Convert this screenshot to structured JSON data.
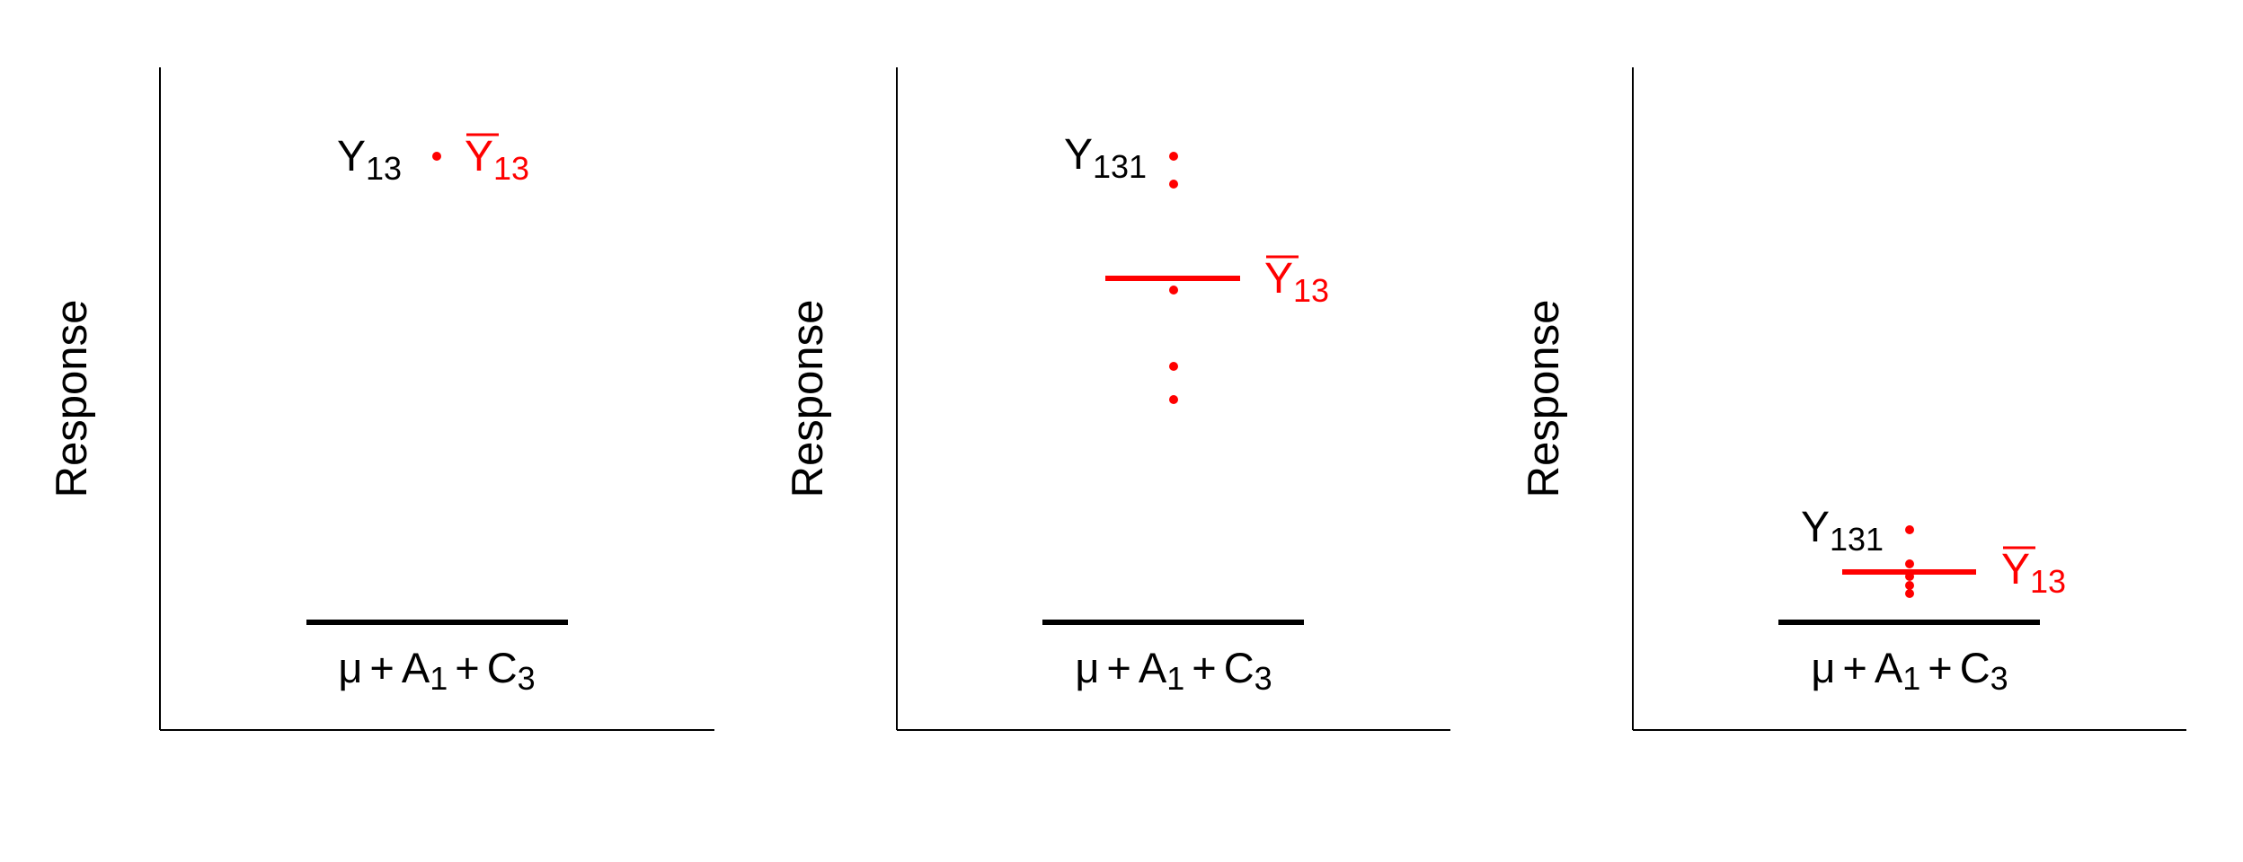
{
  "colors": {
    "axis": "#000000",
    "text": "#000000",
    "highlight": "#ff0000"
  },
  "panels": [
    {
      "ylabel": "Response",
      "baseline_label": {
        "mu": "μ",
        "plus1": "+",
        "a": "A",
        "a_sub": "1",
        "plus2": "+",
        "c": "C",
        "c_sub": "3"
      },
      "obs_label": {
        "letter": "Y",
        "sub": "13"
      },
      "mean_label": {
        "letter": "Y",
        "sub": "13"
      },
      "points": 1,
      "mean_bar": false
    },
    {
      "ylabel": "Response",
      "baseline_label": {
        "mu": "μ",
        "plus1": "+",
        "a": "A",
        "a_sub": "1",
        "plus2": "+",
        "c": "C",
        "c_sub": "3"
      },
      "obs_label": {
        "letter": "Y",
        "sub": "131"
      },
      "mean_label": {
        "letter": "Y",
        "sub": "13"
      },
      "points": 5,
      "mean_bar": true
    },
    {
      "ylabel": "Response",
      "baseline_label": {
        "mu": "μ",
        "plus1": "+",
        "a": "A",
        "a_sub": "1",
        "plus2": "+",
        "c": "C",
        "c_sub": "3"
      },
      "obs_label": {
        "letter": "Y",
        "sub": "131"
      },
      "mean_label": {
        "letter": "Y",
        "sub": "13"
      },
      "points": 5,
      "mean_bar": true
    }
  ]
}
